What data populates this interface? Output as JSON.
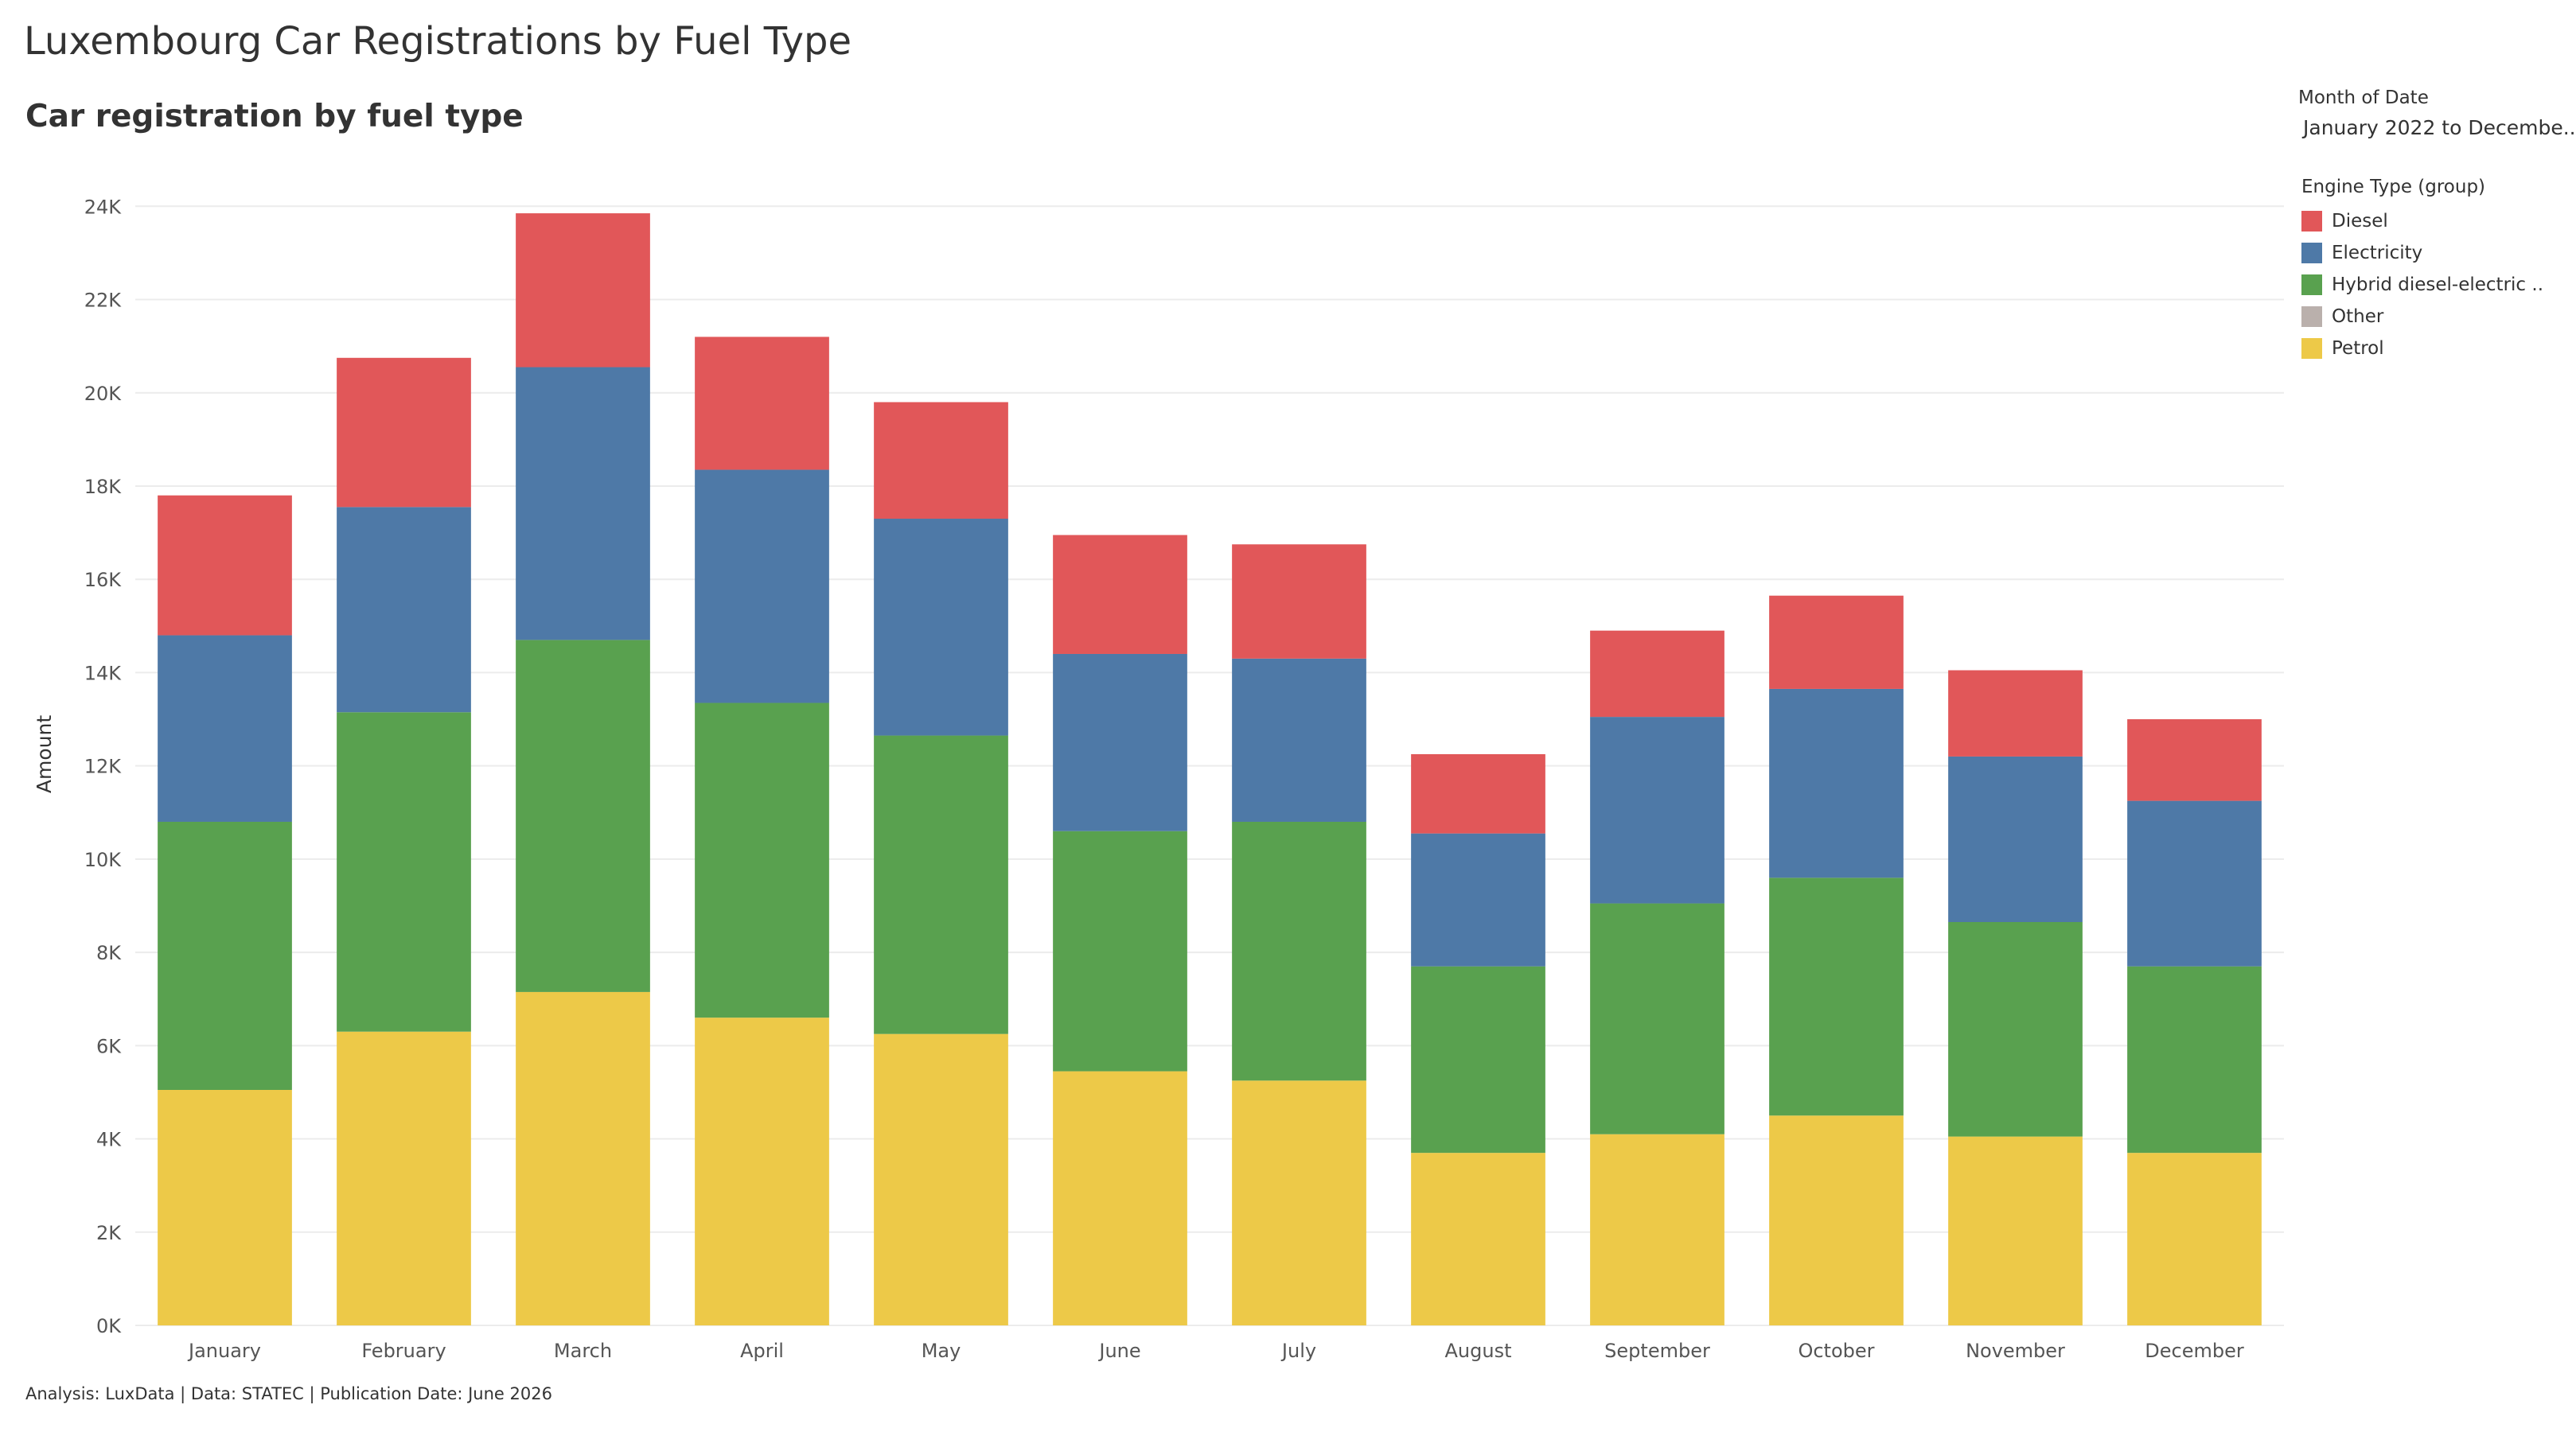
{
  "title": "Luxembourg Car Registrations by Fuel Type",
  "subtitle": "Car registration by fuel type",
  "footer": "Analysis: LuxData | Data: STATEC | Publication Date: June 2026",
  "filter": {
    "title": "Month of Date",
    "value": "January 2022 to Decembe.."
  },
  "legend": {
    "title": "Engine Type (group)",
    "items": [
      {
        "label": "Diesel",
        "color": "#e15759"
      },
      {
        "label": "Electricity",
        "color": "#4e79a7"
      },
      {
        "label": "Hybrid diesel-electric ..",
        "color": "#59a14f"
      },
      {
        "label": "Other",
        "color": "#bab0ac"
      },
      {
        "label": "Petrol",
        "color": "#edc948"
      }
    ]
  },
  "chart_data": {
    "type": "bar",
    "stacked": true,
    "categories": [
      "January",
      "February",
      "March",
      "April",
      "May",
      "June",
      "July",
      "August",
      "September",
      "October",
      "November",
      "December"
    ],
    "ylabel": "Amount",
    "ylim": [
      0,
      24500
    ],
    "yticks": [
      0,
      2000,
      4000,
      6000,
      8000,
      10000,
      12000,
      14000,
      16000,
      18000,
      20000,
      22000,
      24000
    ],
    "ytick_labels": [
      "0K",
      "2K",
      "4K",
      "6K",
      "8K",
      "10K",
      "12K",
      "14K",
      "16K",
      "18K",
      "20K",
      "22K",
      "24K"
    ],
    "grid": true,
    "series": [
      {
        "name": "Petrol",
        "color": "#edc948",
        "values": [
          5050,
          6300,
          7150,
          6600,
          6250,
          5450,
          5250,
          3700,
          4100,
          4500,
          4050,
          3700
        ]
      },
      {
        "name": "Other",
        "color": "#bab0ac",
        "values": [
          0,
          0,
          0,
          0,
          0,
          0,
          0,
          0,
          0,
          0,
          0,
          0
        ]
      },
      {
        "name": "Hybrid diesel-electric ..",
        "color": "#59a14f",
        "values": [
          5750,
          6850,
          7550,
          6750,
          6400,
          5150,
          5550,
          4000,
          4950,
          5100,
          4600,
          4000
        ]
      },
      {
        "name": "Electricity",
        "color": "#4e79a7",
        "values": [
          4000,
          4400,
          5850,
          5000,
          4650,
          3800,
          3500,
          2850,
          4000,
          4050,
          3550,
          3550
        ]
      },
      {
        "name": "Diesel",
        "color": "#e15759",
        "values": [
          3000,
          3200,
          3300,
          2850,
          2500,
          2550,
          2450,
          1700,
          1850,
          2000,
          1850,
          1750
        ]
      }
    ]
  }
}
